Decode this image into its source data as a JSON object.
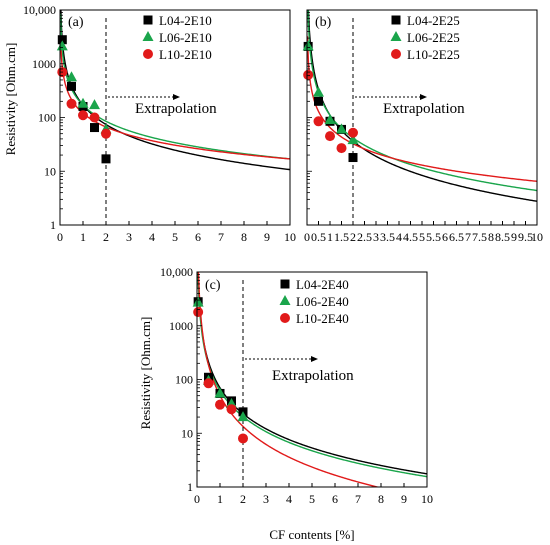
{
  "shared": {
    "ylabel": "Resistivity [Ohm.cm]",
    "xlabel": "CF contents [%]",
    "annotation": "Extrapolation"
  },
  "chart_data": [
    {
      "panel": "(a)",
      "type": "scatter",
      "xlim": [
        0,
        10
      ],
      "ylim": [
        1,
        10000
      ],
      "yscale": "log",
      "x_ticks": [
        0,
        1,
        2,
        3,
        4,
        5,
        6,
        7,
        8,
        9,
        10
      ],
      "y_ticks": [
        {
          "v": 1,
          "label": "1"
        },
        {
          "v": 10,
          "label": "10"
        },
        {
          "v": 100,
          "label": "100"
        },
        {
          "v": 1000,
          "label": "1000"
        },
        {
          "v": 10000,
          "label": "10,000"
        }
      ],
      "vline_x": 2,
      "legend_position": "top-right",
      "series": [
        {
          "name": "L04-2E10",
          "color": "#000000",
          "marker": "square",
          "points": [
            [
              0.1,
              2800
            ],
            [
              0.5,
              380
            ],
            [
              1.0,
              160
            ],
            [
              1.5,
              65
            ],
            [
              2.0,
              17
            ]
          ],
          "fit": {
            "a": 170,
            "b": 1.2
          }
        },
        {
          "name": "L06-2E10",
          "color": "#1aa54b",
          "marker": "triangle",
          "points": [
            [
              0.1,
              2100
            ],
            [
              0.5,
              560
            ],
            [
              1.0,
              180
            ],
            [
              1.5,
              170
            ],
            [
              2.0,
              60
            ]
          ],
          "fit": {
            "a": 170,
            "b": 1.0
          }
        },
        {
          "name": "L10-2E10",
          "color": "#e11a1a",
          "marker": "circle",
          "points": [
            [
              0.1,
              700
            ],
            [
              0.5,
              180
            ],
            [
              1.0,
              110
            ],
            [
              1.5,
              100
            ],
            [
              2.0,
              50
            ]
          ],
          "fit": {
            "a": 120,
            "b": 0.85
          }
        }
      ]
    },
    {
      "panel": "(b)",
      "type": "scatter",
      "xlim": [
        0,
        10
      ],
      "ylim": [
        1,
        10000
      ],
      "yscale": "log",
      "x_ticks": [
        0,
        0.5,
        1,
        1.5,
        2,
        2.5,
        3,
        3.5,
        4,
        4.5,
        5,
        5.5,
        6,
        6.5,
        7,
        7.5,
        8,
        8.5,
        9,
        9.5,
        10
      ],
      "y_ticks": [],
      "vline_x": 2,
      "legend_position": "top-right",
      "series": [
        {
          "name": "L04-2E25",
          "color": "#000000",
          "marker": "square",
          "points": [
            [
              0.05,
              2100
            ],
            [
              0.5,
              200
            ],
            [
              1.0,
              85
            ],
            [
              1.5,
              60
            ],
            [
              2.0,
              18
            ]
          ],
          "fit": {
            "a": 110,
            "b": 1.6
          }
        },
        {
          "name": "L06-2E25",
          "color": "#1aa54b",
          "marker": "triangle",
          "points": [
            [
              0.05,
              2100
            ],
            [
              0.5,
              290
            ],
            [
              1.0,
              90
            ],
            [
              1.5,
              60
            ],
            [
              2.0,
              38
            ]
          ],
          "fit": {
            "a": 110,
            "b": 1.4
          }
        },
        {
          "name": "L10-2E25",
          "color": "#e11a1a",
          "marker": "circle",
          "points": [
            [
              0.05,
              620
            ],
            [
              0.5,
              85
            ],
            [
              1.0,
              45
            ],
            [
              1.5,
              27
            ],
            [
              2.0,
              52
            ]
          ],
          "fit": {
            "a": 65,
            "b": 1.0
          }
        }
      ]
    },
    {
      "panel": "(c)",
      "type": "scatter",
      "xlim": [
        0,
        10
      ],
      "ylim": [
        1,
        10000
      ],
      "yscale": "log",
      "x_ticks": [
        0,
        1,
        2,
        3,
        4,
        5,
        6,
        7,
        8,
        9,
        10
      ],
      "y_ticks": [
        {
          "v": 1,
          "label": "1"
        },
        {
          "v": 10,
          "label": "10"
        },
        {
          "v": 100,
          "label": "100"
        },
        {
          "v": 1000,
          "label": "1000"
        },
        {
          "v": 10000,
          "label": "10,000"
        }
      ],
      "vline_x": 2,
      "legend_position": "top-right",
      "series": [
        {
          "name": "L04-2E40",
          "color": "#000000",
          "marker": "square",
          "points": [
            [
              0.05,
              2800
            ],
            [
              0.5,
              110
            ],
            [
              1.0,
              55
            ],
            [
              1.5,
              40
            ],
            [
              2.0,
              25
            ]
          ],
          "fit": {
            "a": 70,
            "b": 1.6
          }
        },
        {
          "name": "L06-2E40",
          "color": "#1aa54b",
          "marker": "triangle",
          "points": [
            [
              0.05,
              2700
            ],
            [
              0.5,
              95
            ],
            [
              1.0,
              55
            ],
            [
              1.5,
              35
            ],
            [
              2.0,
              20
            ]
          ],
          "fit": {
            "a": 62,
            "b": 1.6
          }
        },
        {
          "name": "L10-2E40",
          "color": "#e11a1a",
          "marker": "circle",
          "points": [
            [
              0.05,
              1800
            ],
            [
              0.5,
              85
            ],
            [
              1.0,
              34
            ],
            [
              1.5,
              28
            ],
            [
              2.0,
              8
            ]
          ],
          "fit": {
            "a": 50,
            "b": 1.9
          }
        }
      ]
    }
  ]
}
